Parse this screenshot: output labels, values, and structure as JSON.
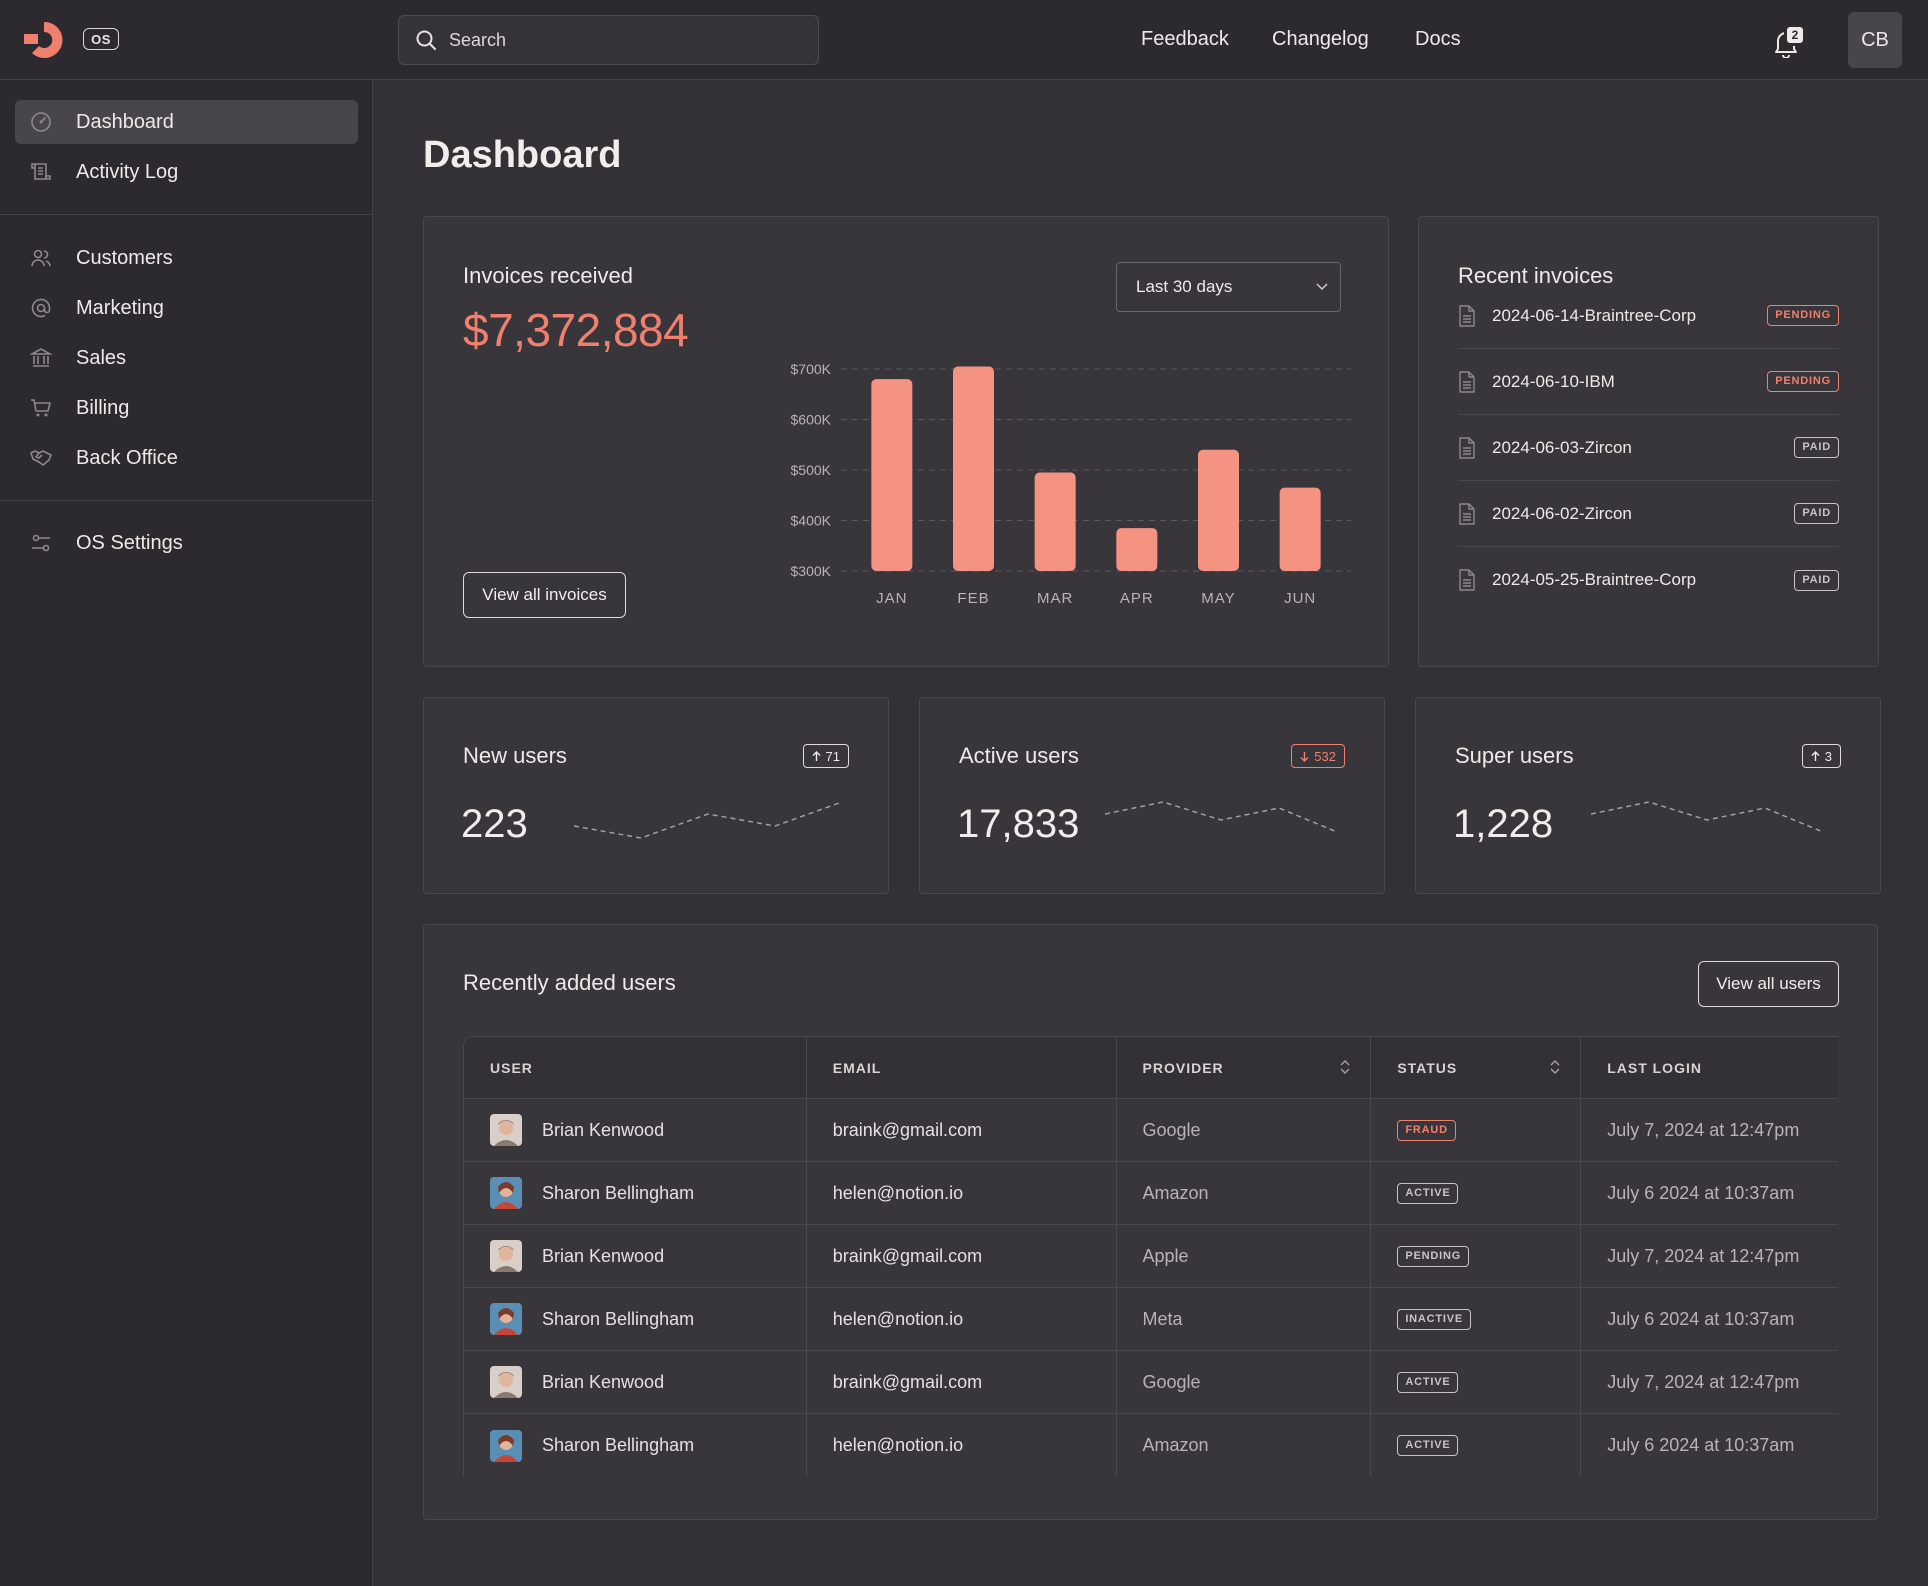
{
  "topbar": {
    "os_label": "OS",
    "search_placeholder": "Search",
    "links": [
      "Feedback",
      "Changelog",
      "Docs"
    ],
    "notifications_count": "2",
    "user_initials": "CB"
  },
  "sidebar": {
    "primary": [
      {
        "label": "Dashboard",
        "icon": "gauge-icon",
        "active": true
      },
      {
        "label": "Activity Log",
        "icon": "scroll-icon"
      }
    ],
    "secondary": [
      {
        "label": "Customers",
        "icon": "users-icon"
      },
      {
        "label": "Marketing",
        "icon": "at-sign-icon"
      },
      {
        "label": "Sales",
        "icon": "bank-icon"
      },
      {
        "label": "Billing",
        "icon": "cart-icon"
      },
      {
        "label": "Back Office",
        "icon": "handshake-icon"
      }
    ],
    "tertiary": [
      {
        "label": "OS Settings",
        "icon": "sliders-icon"
      }
    ]
  },
  "main": {
    "title": "Dashboard",
    "invoices_card": {
      "title": "Invoices received",
      "amount": "$7,372,884",
      "range_select": "Last 30 days",
      "view_all": "View all invoices"
    },
    "recent_invoices": {
      "title": "Recent invoices",
      "items": [
        {
          "name": "2024-06-14-Braintree-Corp",
          "status": "PENDING"
        },
        {
          "name": "2024-06-10-IBM",
          "status": "PENDING"
        },
        {
          "name": "2024-06-03-Zircon",
          "status": "PAID"
        },
        {
          "name": "2024-06-02-Zircon",
          "status": "PAID"
        },
        {
          "name": "2024-05-25-Braintree-Corp",
          "status": "PAID"
        }
      ]
    },
    "stats": [
      {
        "title": "New users",
        "value": "223",
        "trend": "71",
        "direction": "up",
        "sparkline": [
          3,
          1,
          5,
          3,
          7
        ]
      },
      {
        "title": "Active users",
        "value": "17,833",
        "trend": "532",
        "direction": "down",
        "sparkline": [
          5,
          7,
          4,
          6,
          2
        ]
      },
      {
        "title": "Super users",
        "value": "1,228",
        "trend": "3",
        "direction": "up",
        "sparkline": [
          5,
          7,
          4,
          6,
          2
        ]
      }
    ],
    "users_table": {
      "title": "Recently added users",
      "view_all": "View all users",
      "columns": [
        "USER",
        "EMAIL",
        "PROVIDER",
        "STATUS",
        "LAST LOGIN"
      ],
      "rows": [
        {
          "user": "Brian Kenwood",
          "email": "braink@gmail.com",
          "provider": "Google",
          "status": "FRAUD",
          "last_login": "July 7, 2024 at 12:47pm"
        },
        {
          "user": "Sharon Bellingham",
          "email": "helen@notion.io",
          "provider": "Amazon",
          "status": "ACTIVE",
          "last_login": "July 6 2024 at 10:37am"
        },
        {
          "user": "Brian Kenwood",
          "email": "braink@gmail.com",
          "provider": "Apple",
          "status": "PENDING",
          "last_login": "July 7, 2024 at 12:47pm"
        },
        {
          "user": "Sharon Bellingham",
          "email": "helen@notion.io",
          "provider": "Meta",
          "status": "INACTIVE",
          "last_login": "July 6 2024 at 10:37am"
        },
        {
          "user": "Brian Kenwood",
          "email": "braink@gmail.com",
          "provider": "Google",
          "status": "ACTIVE",
          "last_login": "July 7, 2024 at 12:47pm"
        },
        {
          "user": "Sharon Bellingham",
          "email": "helen@notion.io",
          "provider": "Amazon",
          "status": "ACTIVE",
          "last_login": "July 6 2024 at 10:37am"
        }
      ]
    }
  },
  "colors": {
    "accent": "#F0806E",
    "bar": "#F49382",
    "background": "#333036",
    "panel": "#2C292F"
  },
  "chart_data": {
    "type": "bar",
    "title": "Invoices received",
    "categories": [
      "JAN",
      "FEB",
      "MAR",
      "APR",
      "MAY",
      "JUN"
    ],
    "values": [
      680,
      705,
      495,
      385,
      540,
      465
    ],
    "unit": "thousands USD",
    "ylim": [
      300,
      700
    ],
    "yticks": [
      "$300K",
      "$400K",
      "$500K",
      "$600K",
      "$700K"
    ],
    "grid": true
  }
}
